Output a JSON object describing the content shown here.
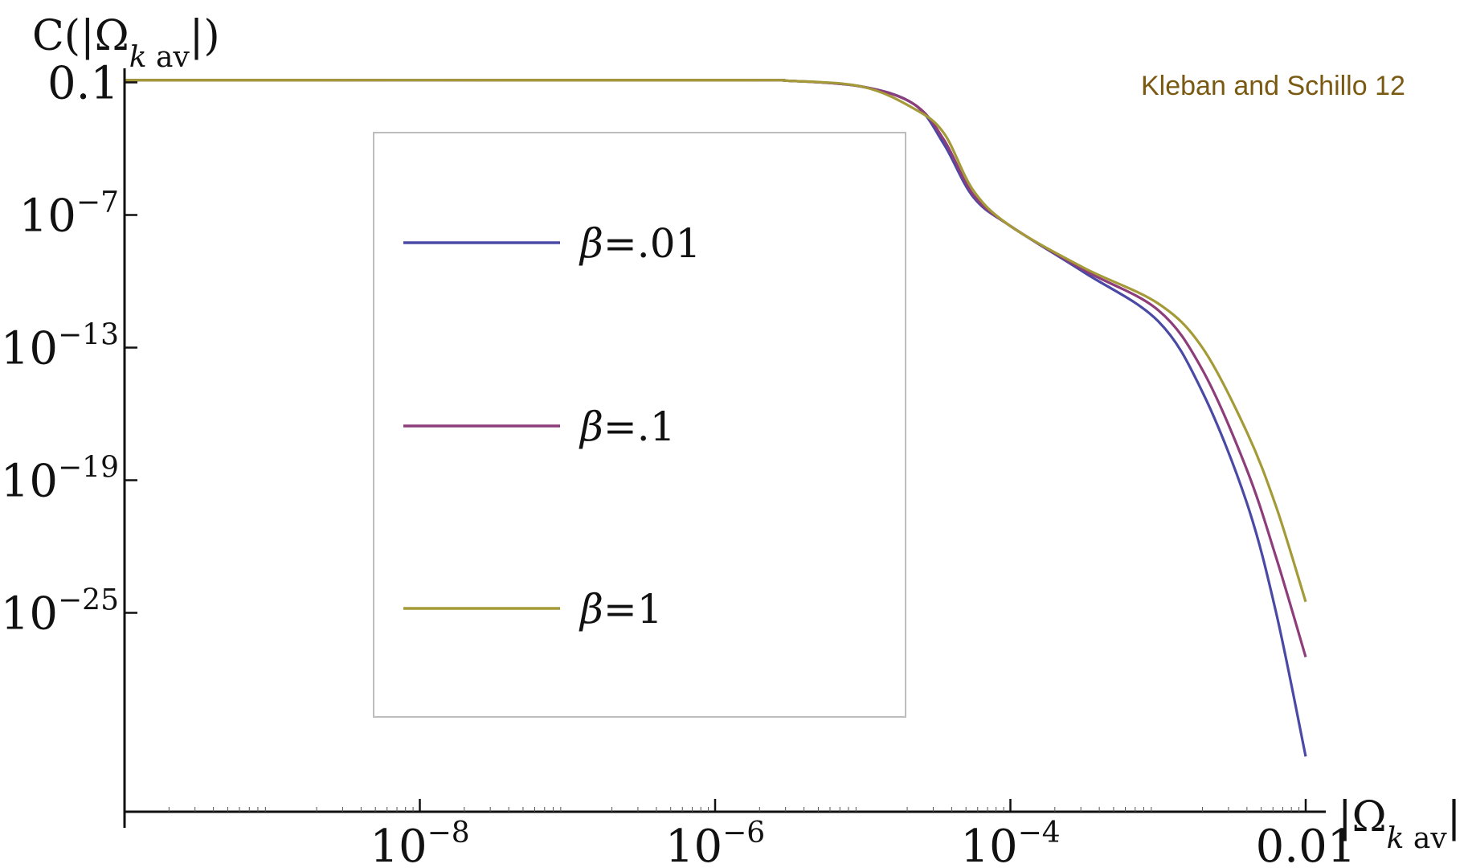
{
  "chart_data": {
    "type": "line",
    "title": "",
    "xlabel": "|Ω_k av|",
    "ylabel": "C(|Ω_k av|)",
    "xscale": "log",
    "yscale": "log",
    "xlim_log10": [
      -10.0,
      -2.0
    ],
    "ylim_log10": [
      -34.0,
      0.0
    ],
    "x_ticks": [
      {
        "label": "10",
        "exp": "−8",
        "log10": -8
      },
      {
        "label": "10",
        "exp": "−6",
        "log10": -6
      },
      {
        "label": "10",
        "exp": "−4",
        "log10": -4
      },
      {
        "label": "0.01",
        "exp": "",
        "log10": -2
      }
    ],
    "y_ticks": [
      {
        "label": "0.1",
        "exp": "",
        "log10": -1
      },
      {
        "label": "10",
        "exp": "−7",
        "log10": -7
      },
      {
        "label": "10",
        "exp": "−13",
        "log10": -13
      },
      {
        "label": "10",
        "exp": "−19",
        "log10": -19
      },
      {
        "label": "10",
        "exp": "−25",
        "log10": -25
      }
    ],
    "grid": false,
    "legend_position": "center-left",
    "annotation": "Kleban and Schillo 12",
    "series": [
      {
        "name": "β=.01",
        "color": "#4a4aa6",
        "points_log10": [
          [
            -10.0,
            -0.9
          ],
          [
            -6.0,
            -0.9
          ],
          [
            -5.5,
            -0.93
          ],
          [
            -5.0,
            -1.2
          ],
          [
            -4.65,
            -2.0
          ],
          [
            -4.45,
            -3.8
          ],
          [
            -4.25,
            -6.2
          ],
          [
            -4.0,
            -7.5
          ],
          [
            -3.5,
            -9.6
          ],
          [
            -3.0,
            -11.8
          ],
          [
            -2.7,
            -15.0
          ],
          [
            -2.4,
            -20.0
          ],
          [
            -2.2,
            -25.0
          ],
          [
            -2.0,
            -31.5
          ]
        ]
      },
      {
        "name": "β=.1",
        "color": "#8c3d7a",
        "points_log10": [
          [
            -10.0,
            -0.9
          ],
          [
            -6.0,
            -0.9
          ],
          [
            -5.5,
            -0.93
          ],
          [
            -5.0,
            -1.2
          ],
          [
            -4.65,
            -2.0
          ],
          [
            -4.45,
            -3.6
          ],
          [
            -4.25,
            -6.1
          ],
          [
            -4.0,
            -7.5
          ],
          [
            -3.5,
            -9.5
          ],
          [
            -3.0,
            -11.3
          ],
          [
            -2.7,
            -14.0
          ],
          [
            -2.4,
            -18.5
          ],
          [
            -2.2,
            -22.5
          ],
          [
            -2.0,
            -27.0
          ]
        ]
      },
      {
        "name": "β=1",
        "color": "#a49a38",
        "points_log10": [
          [
            -10.0,
            -0.9
          ],
          [
            -6.0,
            -0.9
          ],
          [
            -5.5,
            -0.93
          ],
          [
            -5.0,
            -1.2
          ],
          [
            -4.65,
            -2.2
          ],
          [
            -4.45,
            -3.3
          ],
          [
            -4.25,
            -5.9
          ],
          [
            -4.0,
            -7.5
          ],
          [
            -3.5,
            -9.4
          ],
          [
            -3.0,
            -11.0
          ],
          [
            -2.7,
            -13.0
          ],
          [
            -2.4,
            -16.8
          ],
          [
            -2.2,
            -20.2
          ],
          [
            -2.0,
            -24.5
          ]
        ]
      }
    ]
  }
}
